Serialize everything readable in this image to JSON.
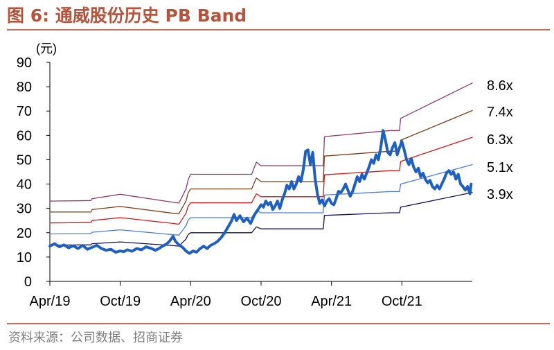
{
  "title": "图 6:  通威股份历史 PB Band",
  "source": "资料来源：公司数据、招商证券",
  "chart_data": {
    "type": "line",
    "unit_label": "(元)",
    "ylim": [
      0,
      90
    ],
    "yticks": [
      0,
      10,
      20,
      30,
      40,
      50,
      60,
      70,
      80,
      90
    ],
    "xlim": [
      0,
      36
    ],
    "xticks": [
      {
        "x": 0,
        "label": "Apr/19"
      },
      {
        "x": 6,
        "label": "Oct/19"
      },
      {
        "x": 12,
        "label": "Apr/20"
      },
      {
        "x": 18,
        "label": "Oct/20"
      },
      {
        "x": 24,
        "label": "Apr/21"
      },
      {
        "x": 30,
        "label": "Oct/21"
      }
    ],
    "grid": false,
    "series": [
      {
        "name": "8.6x",
        "color": "#8e3b6c",
        "width": 1.3,
        "points": [
          [
            0,
            33
          ],
          [
            3.5,
            33.2
          ],
          [
            3.6,
            34
          ],
          [
            6,
            35.8
          ],
          [
            10.5,
            32.5
          ],
          [
            11,
            32.2
          ],
          [
            11.6,
            38
          ],
          [
            11.8,
            42
          ],
          [
            12,
            44
          ],
          [
            16,
            44
          ],
          [
            17.2,
            44
          ],
          [
            17.6,
            49
          ],
          [
            18,
            47.5
          ],
          [
            23,
            47.5
          ],
          [
            23.3,
            47.5
          ],
          [
            23.4,
            59.5
          ],
          [
            29,
            62
          ],
          [
            29.8,
            62
          ],
          [
            29.9,
            67
          ],
          [
            36,
            81.5
          ]
        ]
      },
      {
        "name": "7.4x",
        "color": "#7b3f16",
        "width": 1.3,
        "points": [
          [
            0,
            28.5
          ],
          [
            3.5,
            28.5
          ],
          [
            3.6,
            29.5
          ],
          [
            6,
            30.8
          ],
          [
            10.5,
            28
          ],
          [
            11,
            27.8
          ],
          [
            11.6,
            33
          ],
          [
            11.8,
            36.5
          ],
          [
            12,
            38
          ],
          [
            16,
            38
          ],
          [
            17.2,
            38
          ],
          [
            17.6,
            42.5
          ],
          [
            18,
            41
          ],
          [
            23,
            41
          ],
          [
            23.3,
            41
          ],
          [
            23.4,
            51.5
          ],
          [
            29,
            53.5
          ],
          [
            29.8,
            53.5
          ],
          [
            29.9,
            58
          ],
          [
            36,
            70.2
          ]
        ]
      },
      {
        "name": "6.3x",
        "color": "#d01818",
        "width": 1.3,
        "points": [
          [
            0,
            24
          ],
          [
            3.5,
            24.2
          ],
          [
            3.6,
            25
          ],
          [
            6,
            26.2
          ],
          [
            10.5,
            23.8
          ],
          [
            11,
            23.5
          ],
          [
            11.6,
            28
          ],
          [
            11.8,
            31
          ],
          [
            12,
            32.3
          ],
          [
            16,
            32.3
          ],
          [
            17.2,
            32.3
          ],
          [
            17.6,
            36
          ],
          [
            18,
            34.8
          ],
          [
            23,
            34.8
          ],
          [
            23.3,
            34.8
          ],
          [
            23.4,
            43.8
          ],
          [
            29,
            45.5
          ],
          [
            29.8,
            45.5
          ],
          [
            29.9,
            49.3
          ],
          [
            36,
            59.2
          ]
        ]
      },
      {
        "name": "5.1x",
        "color": "#4a7ad8",
        "width": 1.3,
        "points": [
          [
            0,
            19.5
          ],
          [
            3.5,
            19.6
          ],
          [
            3.6,
            20.2
          ],
          [
            6,
            21.2
          ],
          [
            10.5,
            19.2
          ],
          [
            11,
            19
          ],
          [
            11.6,
            22.8
          ],
          [
            11.8,
            25.3
          ],
          [
            12,
            26.2
          ],
          [
            16,
            26.2
          ],
          [
            17.2,
            26.2
          ],
          [
            17.6,
            29.3
          ],
          [
            18,
            28.2
          ],
          [
            23,
            28.2
          ],
          [
            23.3,
            28.2
          ],
          [
            23.4,
            35.5
          ],
          [
            29,
            36.9
          ],
          [
            29.8,
            36.9
          ],
          [
            29.9,
            40
          ],
          [
            36,
            48
          ]
        ]
      },
      {
        "name": "3.9x",
        "color": "#10105a",
        "width": 1.3,
        "points": [
          [
            0,
            14.9
          ],
          [
            3.5,
            15
          ],
          [
            3.6,
            15.5
          ],
          [
            6,
            16.2
          ],
          [
            10.5,
            14.7
          ],
          [
            11,
            14.5
          ],
          [
            11.6,
            17.4
          ],
          [
            11.8,
            19.3
          ],
          [
            12,
            20
          ],
          [
            16,
            20
          ],
          [
            17.2,
            20
          ],
          [
            17.6,
            22.4
          ],
          [
            18,
            21.6
          ],
          [
            23,
            21.6
          ],
          [
            23.3,
            21.6
          ],
          [
            23.4,
            27.1
          ],
          [
            29,
            28.2
          ],
          [
            29.8,
            28.2
          ],
          [
            29.9,
            30.5
          ],
          [
            36,
            36.5
          ]
        ]
      },
      {
        "name": "",
        "color": "#1e5fc4",
        "width": 4,
        "points": [
          [
            0,
            14.5
          ],
          [
            0.4,
            15.5
          ],
          [
            0.8,
            14.2
          ],
          [
            1.2,
            15
          ],
          [
            1.6,
            13.8
          ],
          [
            2,
            14.6
          ],
          [
            2.4,
            13.5
          ],
          [
            2.8,
            14.8
          ],
          [
            3.2,
            13.2
          ],
          [
            3.6,
            14
          ],
          [
            4,
            14.8
          ],
          [
            4.4,
            13.5
          ],
          [
            4.8,
            12.8
          ],
          [
            5.2,
            13.2
          ],
          [
            5.6,
            12
          ],
          [
            6,
            12.5
          ],
          [
            6.3,
            12.2
          ],
          [
            6.6,
            13
          ],
          [
            7,
            12.4
          ],
          [
            7.4,
            13.5
          ],
          [
            7.8,
            13
          ],
          [
            8.2,
            14.2
          ],
          [
            8.6,
            13.6
          ],
          [
            9,
            12.8
          ],
          [
            9.3,
            13.5
          ],
          [
            9.6,
            14.5
          ],
          [
            9.9,
            15.2
          ],
          [
            10.2,
            16.5
          ],
          [
            10.5,
            18.5
          ],
          [
            10.7,
            16.5
          ],
          [
            11,
            15
          ],
          [
            11.3,
            14
          ],
          [
            11.6,
            12.5
          ],
          [
            11.9,
            11.5
          ],
          [
            12.2,
            12.5
          ],
          [
            12.5,
            12
          ],
          [
            12.8,
            13.5
          ],
          [
            13.1,
            14.5
          ],
          [
            13.4,
            13.5
          ],
          [
            13.7,
            14.8
          ],
          [
            14,
            15.5
          ],
          [
            14.3,
            16.5
          ],
          [
            14.6,
            18
          ],
          [
            14.9,
            20
          ],
          [
            15.2,
            22.5
          ],
          [
            15.5,
            25
          ],
          [
            15.7,
            27.5
          ],
          [
            15.9,
            25
          ],
          [
            16.2,
            27
          ],
          [
            16.5,
            24.5
          ],
          [
            16.8,
            26
          ],
          [
            17.1,
            23.8
          ],
          [
            17.4,
            27
          ],
          [
            17.6,
            28.5
          ],
          [
            17.8,
            30
          ],
          [
            18,
            31.5
          ],
          [
            18.2,
            30.5
          ],
          [
            18.4,
            33
          ],
          [
            18.6,
            31.5
          ],
          [
            18.8,
            32.5
          ],
          [
            19,
            29.5
          ],
          [
            19.2,
            31
          ],
          [
            19.4,
            33
          ],
          [
            19.6,
            30
          ],
          [
            19.8,
            33.5
          ],
          [
            20,
            36
          ],
          [
            20.2,
            39.5
          ],
          [
            20.4,
            38
          ],
          [
            20.6,
            41
          ],
          [
            20.8,
            38
          ],
          [
            21,
            40
          ],
          [
            21.2,
            43
          ],
          [
            21.4,
            41
          ],
          [
            21.6,
            46
          ],
          [
            21.8,
            53.5
          ],
          [
            22,
            54
          ],
          [
            22.2,
            48
          ],
          [
            22.4,
            53
          ],
          [
            22.6,
            42.5
          ],
          [
            22.8,
            36
          ],
          [
            23,
            32
          ],
          [
            23.2,
            33.5
          ],
          [
            23.4,
            31
          ],
          [
            23.6,
            33
          ],
          [
            23.8,
            34
          ],
          [
            24,
            32
          ],
          [
            24.2,
            31.5
          ],
          [
            24.4,
            34
          ],
          [
            24.6,
            37
          ],
          [
            24.8,
            36.5
          ],
          [
            25,
            38
          ],
          [
            25.2,
            40
          ],
          [
            25.4,
            37.5
          ],
          [
            25.6,
            35
          ],
          [
            25.8,
            37
          ],
          [
            26,
            40
          ],
          [
            26.2,
            43
          ],
          [
            26.4,
            41
          ],
          [
            26.6,
            44
          ],
          [
            26.8,
            42
          ],
          [
            27,
            44.5
          ],
          [
            27.2,
            47
          ],
          [
            27.4,
            50
          ],
          [
            27.6,
            48.5
          ],
          [
            27.8,
            52
          ],
          [
            28,
            50
          ],
          [
            28.2,
            55
          ],
          [
            28.4,
            62
          ],
          [
            28.6,
            58
          ],
          [
            28.8,
            53
          ],
          [
            29,
            52
          ],
          [
            29.2,
            55
          ],
          [
            29.4,
            57
          ],
          [
            29.6,
            52
          ],
          [
            29.8,
            55
          ],
          [
            30,
            57.5
          ],
          [
            30.2,
            54
          ],
          [
            30.4,
            50
          ],
          [
            30.6,
            48
          ],
          [
            30.8,
            50.5
          ],
          [
            31,
            47
          ],
          [
            31.2,
            45
          ],
          [
            31.4,
            46.5
          ],
          [
            31.6,
            43
          ],
          [
            31.8,
            44.5
          ],
          [
            32,
            42
          ],
          [
            32.2,
            40.5
          ],
          [
            32.4,
            41.5
          ],
          [
            32.6,
            39
          ],
          [
            32.8,
            38
          ],
          [
            33,
            39.5
          ],
          [
            33.2,
            38
          ],
          [
            33.4,
            40
          ],
          [
            33.6,
            42
          ],
          [
            33.8,
            44.5
          ],
          [
            34,
            45.5
          ],
          [
            34.2,
            44
          ],
          [
            34.4,
            45
          ],
          [
            34.6,
            42
          ],
          [
            34.8,
            44
          ],
          [
            35,
            40
          ],
          [
            35.2,
            39
          ],
          [
            35.4,
            37.5
          ],
          [
            35.6,
            39
          ],
          [
            35.8,
            36
          ],
          [
            35.9,
            40
          ]
        ]
      }
    ]
  }
}
